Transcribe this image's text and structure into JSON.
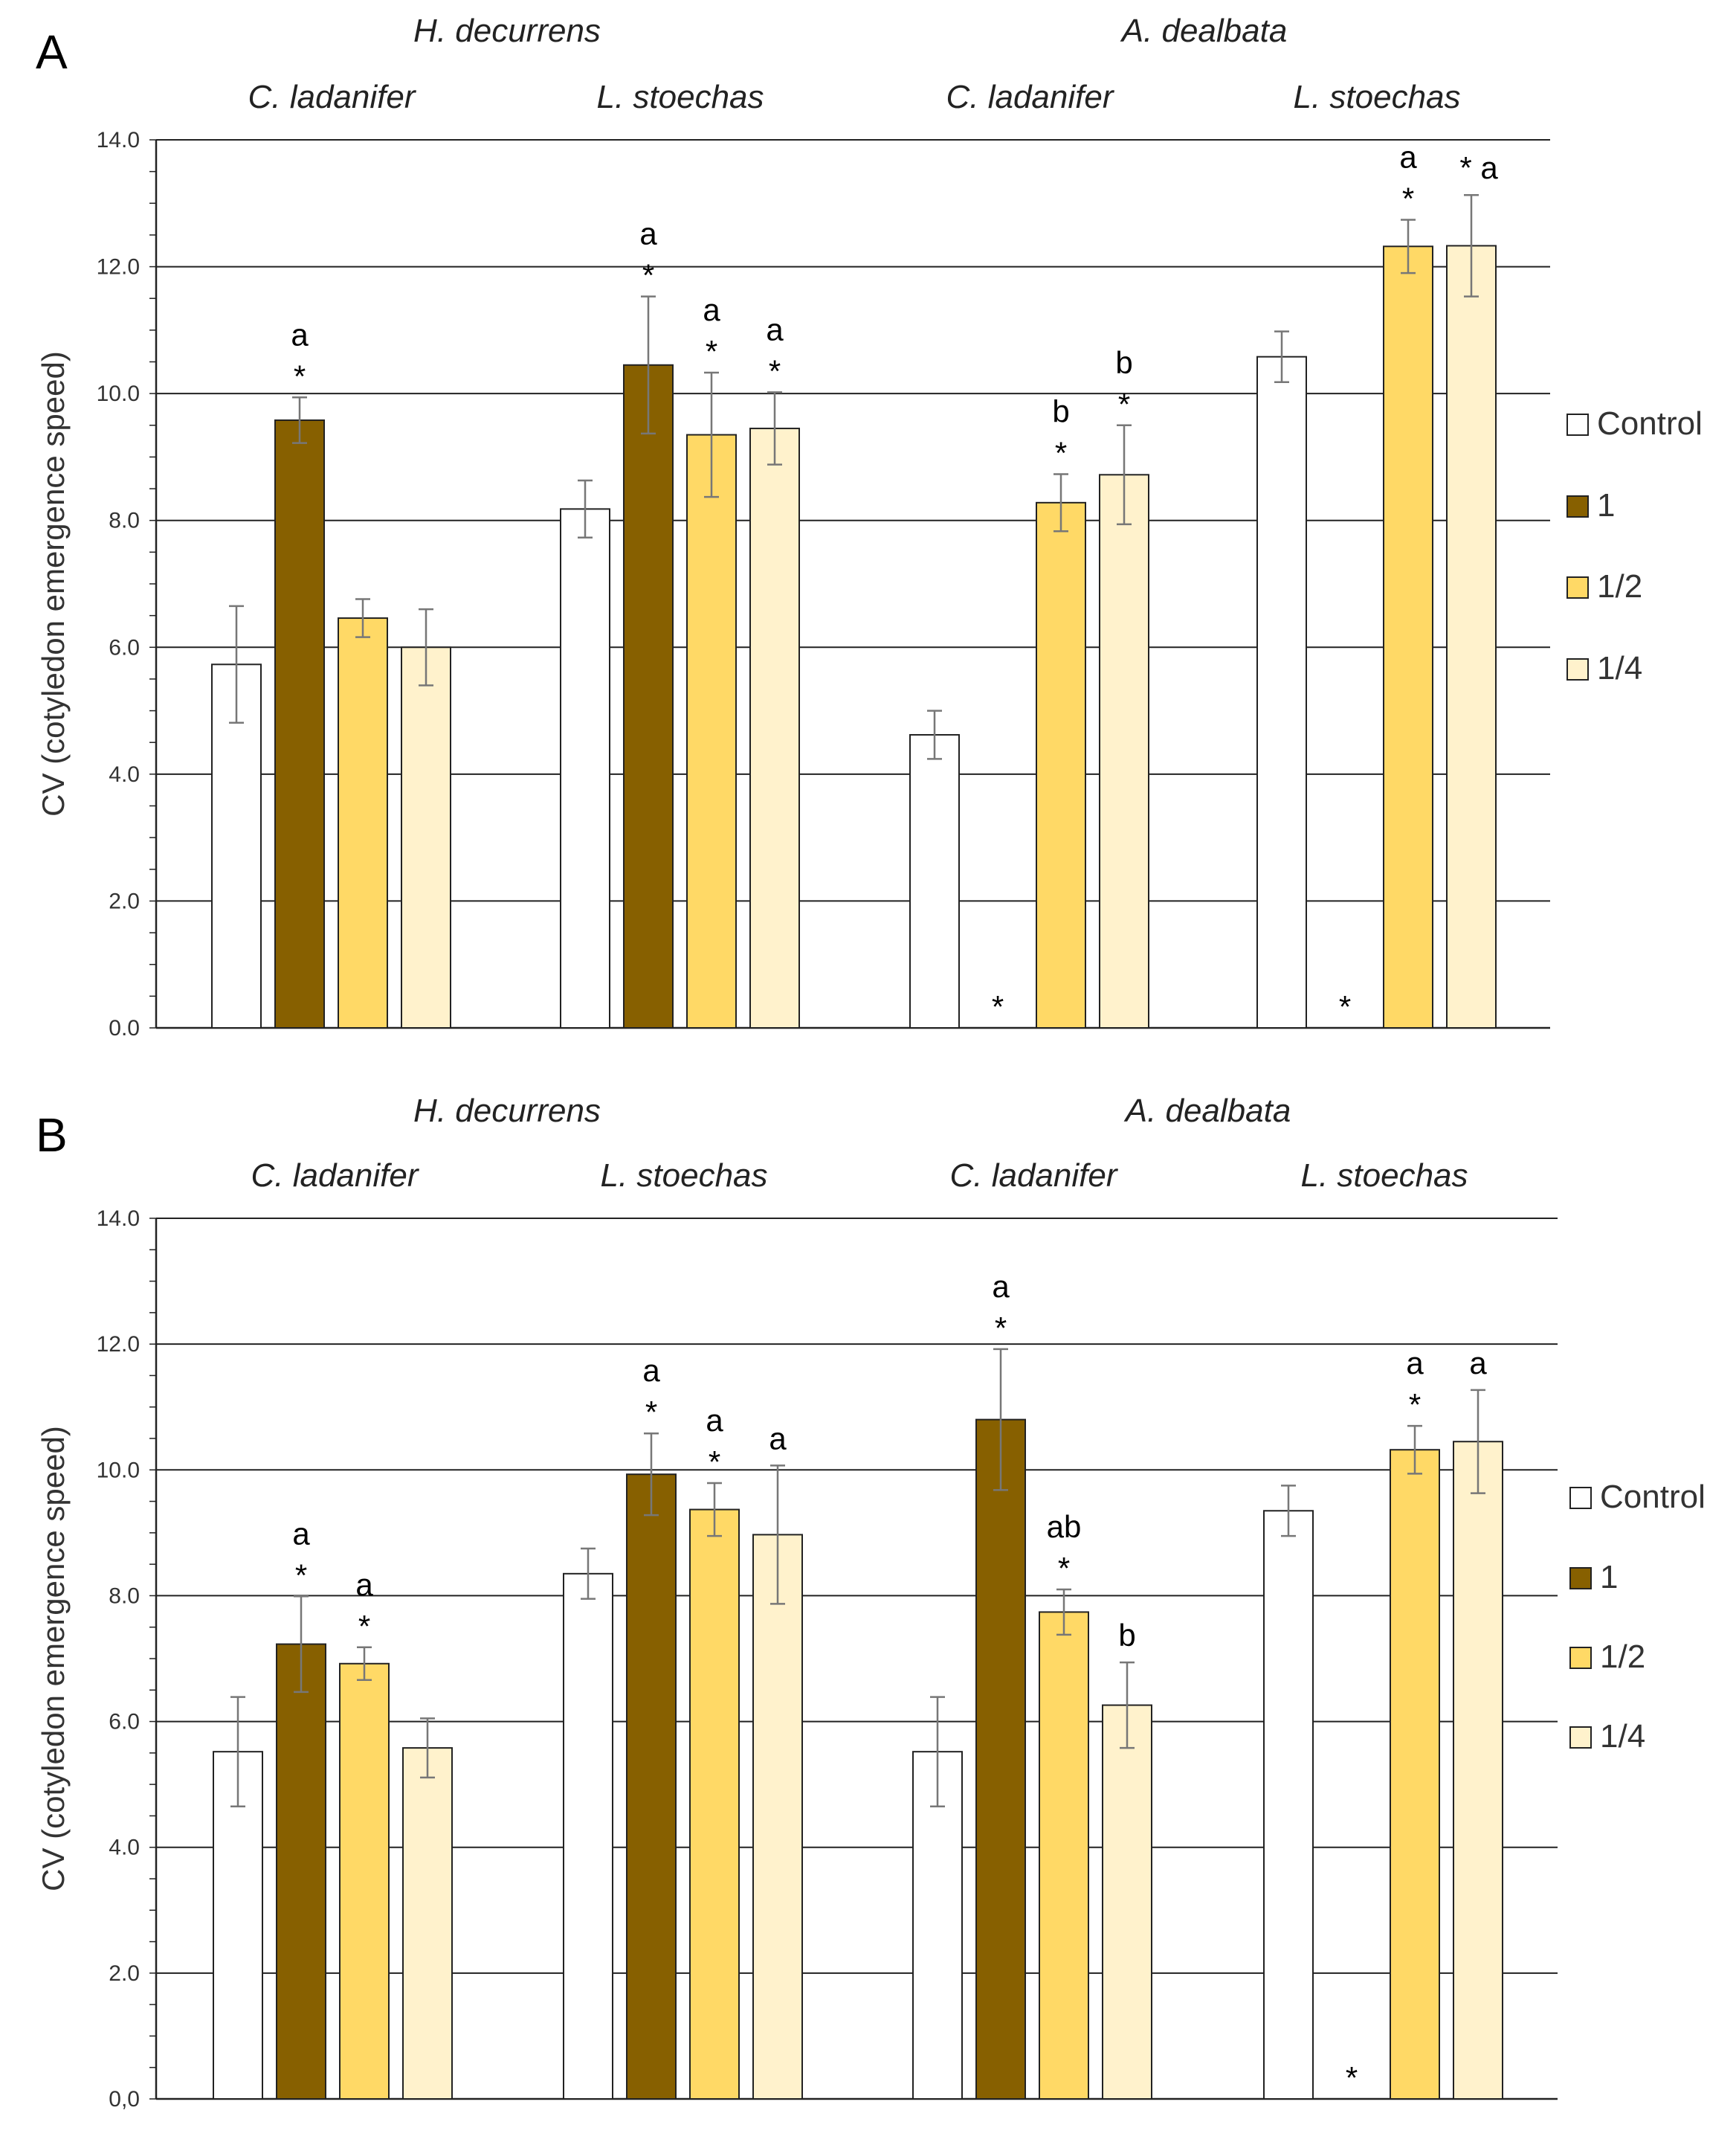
{
  "chart_data": [
    {
      "type": "bar",
      "panel_label": "A",
      "ylabel": "CV (cotyledon emergence speed)",
      "ylim": [
        0,
        14
      ],
      "yticks": [
        "0.0",
        "2.0",
        "4.0",
        "6.0",
        "8.0",
        "10.0",
        "12.0",
        "14.0"
      ],
      "grid": true,
      "legend_position": "right",
      "groups": [
        "H. decurrens",
        "A. dealbata"
      ],
      "subgroups": [
        "C. ladanifer",
        "L. stoechas",
        "C. ladanifer",
        "L. stoechas"
      ],
      "series": [
        {
          "name": "Control",
          "values": [
            5.73,
            8.18,
            4.62,
            10.58
          ],
          "errors": [
            0.92,
            0.45,
            0.38,
            0.4
          ]
        },
        {
          "name": "1",
          "values": [
            9.58,
            10.45,
            0,
            0
          ],
          "errors": [
            0.36,
            1.08,
            0,
            0
          ]
        },
        {
          "name": "1/2",
          "values": [
            6.46,
            9.35,
            8.28,
            12.32
          ],
          "errors": [
            0.3,
            0.98,
            0.45,
            0.42
          ]
        },
        {
          "name": "1/4",
          "values": [
            6.0,
            9.45,
            8.72,
            12.33
          ],
          "errors": [
            0.6,
            0.57,
            0.78,
            0.8
          ]
        }
      ],
      "annotations": [
        {
          "subgroup": 0,
          "series": 1,
          "labels": [
            "a",
            "*"
          ]
        },
        {
          "subgroup": 1,
          "series": 1,
          "labels": [
            "a",
            "*"
          ]
        },
        {
          "subgroup": 1,
          "series": 2,
          "labels": [
            "a",
            "*"
          ]
        },
        {
          "subgroup": 1,
          "series": 3,
          "labels": [
            "a",
            "*"
          ]
        },
        {
          "subgroup": 2,
          "series": 1,
          "labels": [
            "*"
          ]
        },
        {
          "subgroup": 2,
          "series": 2,
          "labels": [
            "b",
            "*"
          ]
        },
        {
          "subgroup": 2,
          "series": 3,
          "labels": [
            "b",
            "*"
          ]
        },
        {
          "subgroup": 3,
          "series": 1,
          "labels": [
            "*"
          ]
        },
        {
          "subgroup": 3,
          "series": 2,
          "labels": [
            "a",
            "*"
          ]
        },
        {
          "subgroup": 3,
          "series": 3,
          "labels": [
            "* a"
          ]
        }
      ]
    },
    {
      "type": "bar",
      "panel_label": "B",
      "ylabel": "CV (cotyledon emergence speed)",
      "ylim": [
        0,
        14
      ],
      "yticks": [
        "0,0",
        "2.0",
        "4.0",
        "6.0",
        "8.0",
        "10.0",
        "12.0",
        "14.0"
      ],
      "grid": true,
      "legend_position": "right",
      "groups": [
        "H. decurrens",
        "A. dealbata"
      ],
      "subgroups": [
        "C. ladanifer",
        "L. stoechas",
        "C. ladanifer",
        "L. stoechas"
      ],
      "series": [
        {
          "name": "Control",
          "values": [
            5.52,
            8.35,
            5.52,
            9.35
          ],
          "errors": [
            0.87,
            0.4,
            0.87,
            0.4
          ]
        },
        {
          "name": "1",
          "values": [
            7.23,
            9.93,
            10.8,
            0
          ],
          "errors": [
            0.76,
            0.65,
            1.12,
            0
          ]
        },
        {
          "name": "1/2",
          "values": [
            6.92,
            9.37,
            7.74,
            10.32
          ],
          "errors": [
            0.26,
            0.42,
            0.36,
            0.38
          ]
        },
        {
          "name": "1/4",
          "values": [
            5.58,
            8.97,
            6.26,
            10.45
          ],
          "errors": [
            0.47,
            1.1,
            0.68,
            0.82
          ]
        }
      ],
      "annotations": [
        {
          "subgroup": 0,
          "series": 1,
          "labels": [
            "a",
            "*"
          ]
        },
        {
          "subgroup": 0,
          "series": 2,
          "labels": [
            "a",
            "*"
          ]
        },
        {
          "subgroup": 1,
          "series": 1,
          "labels": [
            "a",
            "*"
          ]
        },
        {
          "subgroup": 1,
          "series": 2,
          "labels": [
            "a",
            "*"
          ]
        },
        {
          "subgroup": 1,
          "series": 3,
          "labels": [
            "a"
          ]
        },
        {
          "subgroup": 2,
          "series": 1,
          "labels": [
            "a",
            "*"
          ]
        },
        {
          "subgroup": 2,
          "series": 2,
          "labels": [
            "ab",
            "*"
          ]
        },
        {
          "subgroup": 2,
          "series": 3,
          "labels": [
            "b"
          ]
        },
        {
          "subgroup": 3,
          "series": 1,
          "labels": [
            "*"
          ]
        },
        {
          "subgroup": 3,
          "series": 2,
          "labels": [
            "a",
            "*"
          ]
        },
        {
          "subgroup": 3,
          "series": 3,
          "labels": [
            "a"
          ]
        }
      ]
    }
  ],
  "colors": {
    "Control": "#ffffff",
    "1": "#876000",
    "1/2": "#ffd966",
    "1/4": "#fff2cc",
    "outline": "#222222",
    "grid": "#222222",
    "error": "#777777"
  }
}
